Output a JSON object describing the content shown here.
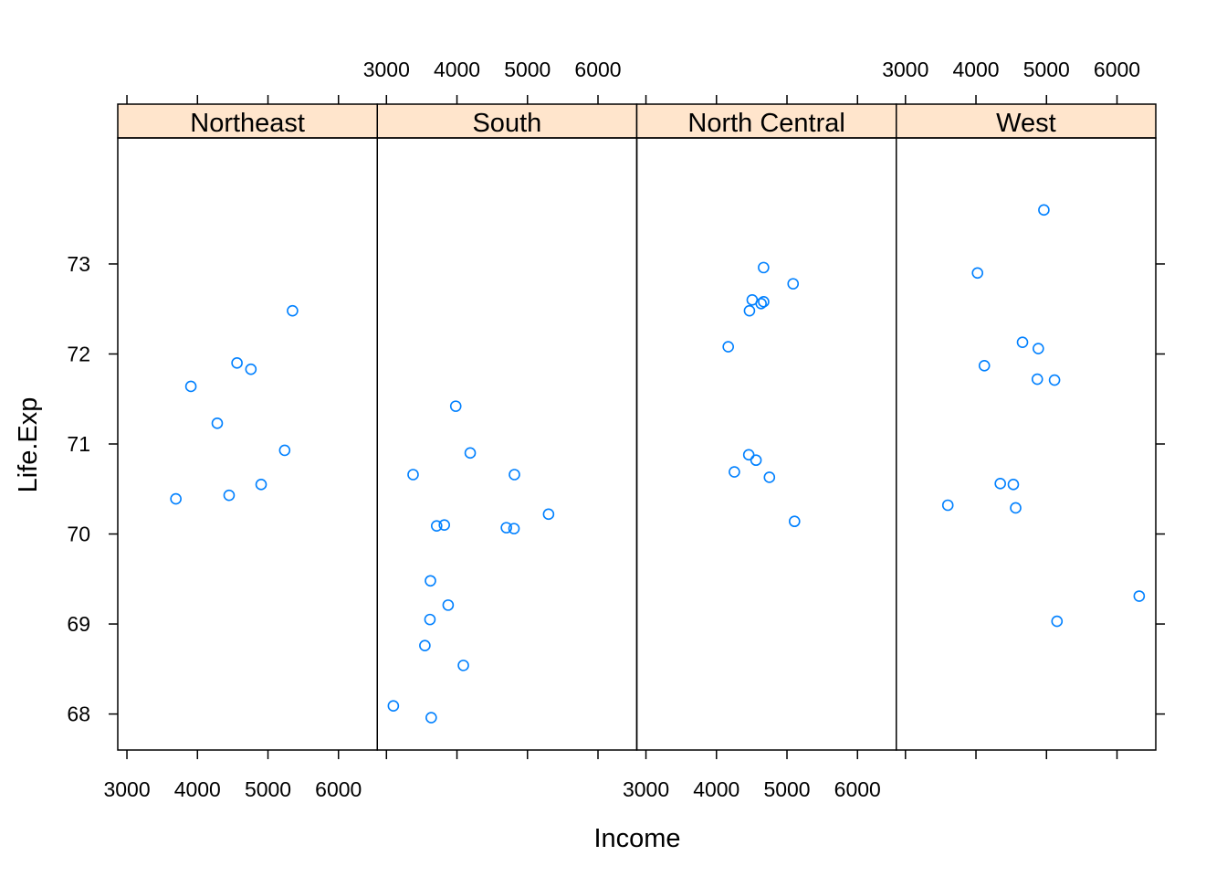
{
  "chart_data": {
    "type": "scatter",
    "xlabel": "Income",
    "ylabel": "Life.Exp",
    "xlim": [
      2870,
      6550
    ],
    "ylim": [
      67.6,
      74.4
    ],
    "x_ticks": [
      3000,
      4000,
      5000,
      6000
    ],
    "y_ticks": [
      68,
      69,
      70,
      71,
      72,
      73
    ],
    "grid": false,
    "point_color": "#0080ff",
    "strip_color": "#ffe5cc",
    "panels": [
      {
        "name": "Northeast",
        "points": [
          {
            "x": 3694,
            "y": 70.39
          },
          {
            "x": 3907,
            "y": 71.64
          },
          {
            "x": 4281,
            "y": 71.23
          },
          {
            "x": 4449,
            "y": 70.43
          },
          {
            "x": 4561,
            "y": 71.9
          },
          {
            "x": 4758,
            "y": 71.83
          },
          {
            "x": 4903,
            "y": 70.55
          },
          {
            "x": 5237,
            "y": 70.93
          },
          {
            "x": 5348,
            "y": 72.48
          }
        ]
      },
      {
        "name": "South",
        "points": [
          {
            "x": 3098,
            "y": 68.09
          },
          {
            "x": 3378,
            "y": 70.66
          },
          {
            "x": 3545,
            "y": 68.76
          },
          {
            "x": 3624,
            "y": 69.48
          },
          {
            "x": 3617,
            "y": 69.05
          },
          {
            "x": 3635,
            "y": 67.96
          },
          {
            "x": 3712,
            "y": 70.09
          },
          {
            "x": 3821,
            "y": 70.1
          },
          {
            "x": 3875,
            "y": 69.21
          },
          {
            "x": 3983,
            "y": 71.42
          },
          {
            "x": 4091,
            "y": 68.54
          },
          {
            "x": 4188,
            "y": 70.9
          },
          {
            "x": 4701,
            "y": 70.07
          },
          {
            "x": 4809,
            "y": 70.06
          },
          {
            "x": 4815,
            "y": 70.66
          },
          {
            "x": 5299,
            "y": 70.22
          }
        ]
      },
      {
        "name": "North Central",
        "points": [
          {
            "x": 4167,
            "y": 72.08
          },
          {
            "x": 4254,
            "y": 70.69
          },
          {
            "x": 4458,
            "y": 70.88
          },
          {
            "x": 4468,
            "y": 72.48
          },
          {
            "x": 4507,
            "y": 72.6
          },
          {
            "x": 4561,
            "y": 70.82
          },
          {
            "x": 4633,
            "y": 72.56
          },
          {
            "x": 4668,
            "y": 72.96
          },
          {
            "x": 4669,
            "y": 72.58
          },
          {
            "x": 4751,
            "y": 70.63
          },
          {
            "x": 5087,
            "y": 72.78
          },
          {
            "x": 5107,
            "y": 70.14
          }
        ]
      },
      {
        "name": "West",
        "points": [
          {
            "x": 3601,
            "y": 70.32
          },
          {
            "x": 4022,
            "y": 72.9
          },
          {
            "x": 4119,
            "y": 71.87
          },
          {
            "x": 4345,
            "y": 70.56
          },
          {
            "x": 4530,
            "y": 70.55
          },
          {
            "x": 4563,
            "y": 70.29
          },
          {
            "x": 4660,
            "y": 72.13
          },
          {
            "x": 4870,
            "y": 71.72
          },
          {
            "x": 4884,
            "y": 72.06
          },
          {
            "x": 4963,
            "y": 73.6
          },
          {
            "x": 5114,
            "y": 71.71
          },
          {
            "x": 5149,
            "y": 69.03
          },
          {
            "x": 6315,
            "y": 69.31
          }
        ]
      }
    ]
  }
}
